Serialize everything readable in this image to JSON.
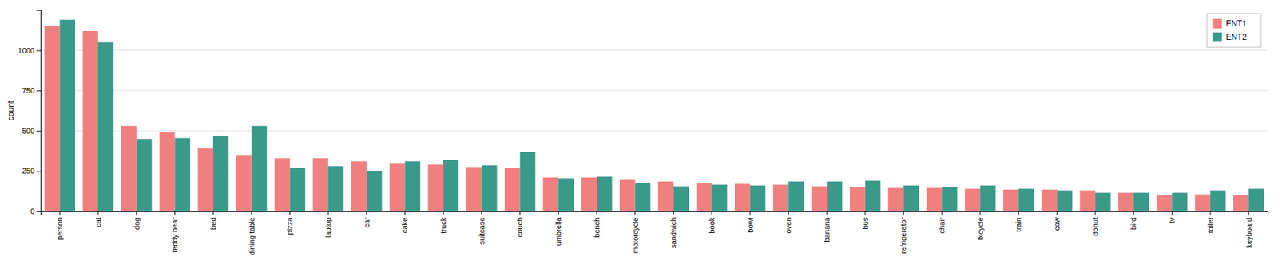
{
  "chart_data": {
    "type": "bar",
    "categories": [
      "person",
      "cat",
      "dog",
      "teddy bear",
      "bed",
      "dining table",
      "pizza",
      "laptop",
      "car",
      "cake",
      "truck",
      "suitcase",
      "couch",
      "umbrella",
      "bench",
      "motorcycle",
      "sandwich",
      "book",
      "bowl",
      "oven",
      "banana",
      "bus",
      "refrigerator",
      "chair",
      "bicycle",
      "train",
      "cow",
      "donut",
      "bird",
      "tv",
      "toilet",
      "keyboard"
    ],
    "series": [
      {
        "name": "ENT1",
        "color": "#f08080",
        "values": [
          1150,
          1120,
          530,
          490,
          390,
          350,
          330,
          330,
          310,
          300,
          290,
          275,
          270,
          210,
          210,
          195,
          185,
          175,
          170,
          165,
          155,
          150,
          145,
          145,
          140,
          135,
          135,
          130,
          115,
          100,
          105,
          100
        ]
      },
      {
        "name": "ENT2",
        "color": "#3a9a8a",
        "values": [
          1190,
          1050,
          450,
          455,
          470,
          530,
          270,
          280,
          250,
          310,
          320,
          285,
          370,
          205,
          215,
          175,
          155,
          165,
          160,
          185,
          185,
          190,
          160,
          150,
          160,
          140,
          130,
          115,
          115,
          115,
          130,
          140
        ]
      }
    ],
    "ylabel": "count",
    "ylim": [
      0,
      1250
    ],
    "yticks": [
      0,
      250,
      500,
      750,
      1000
    ],
    "grid": true,
    "legend": "upper right"
  }
}
